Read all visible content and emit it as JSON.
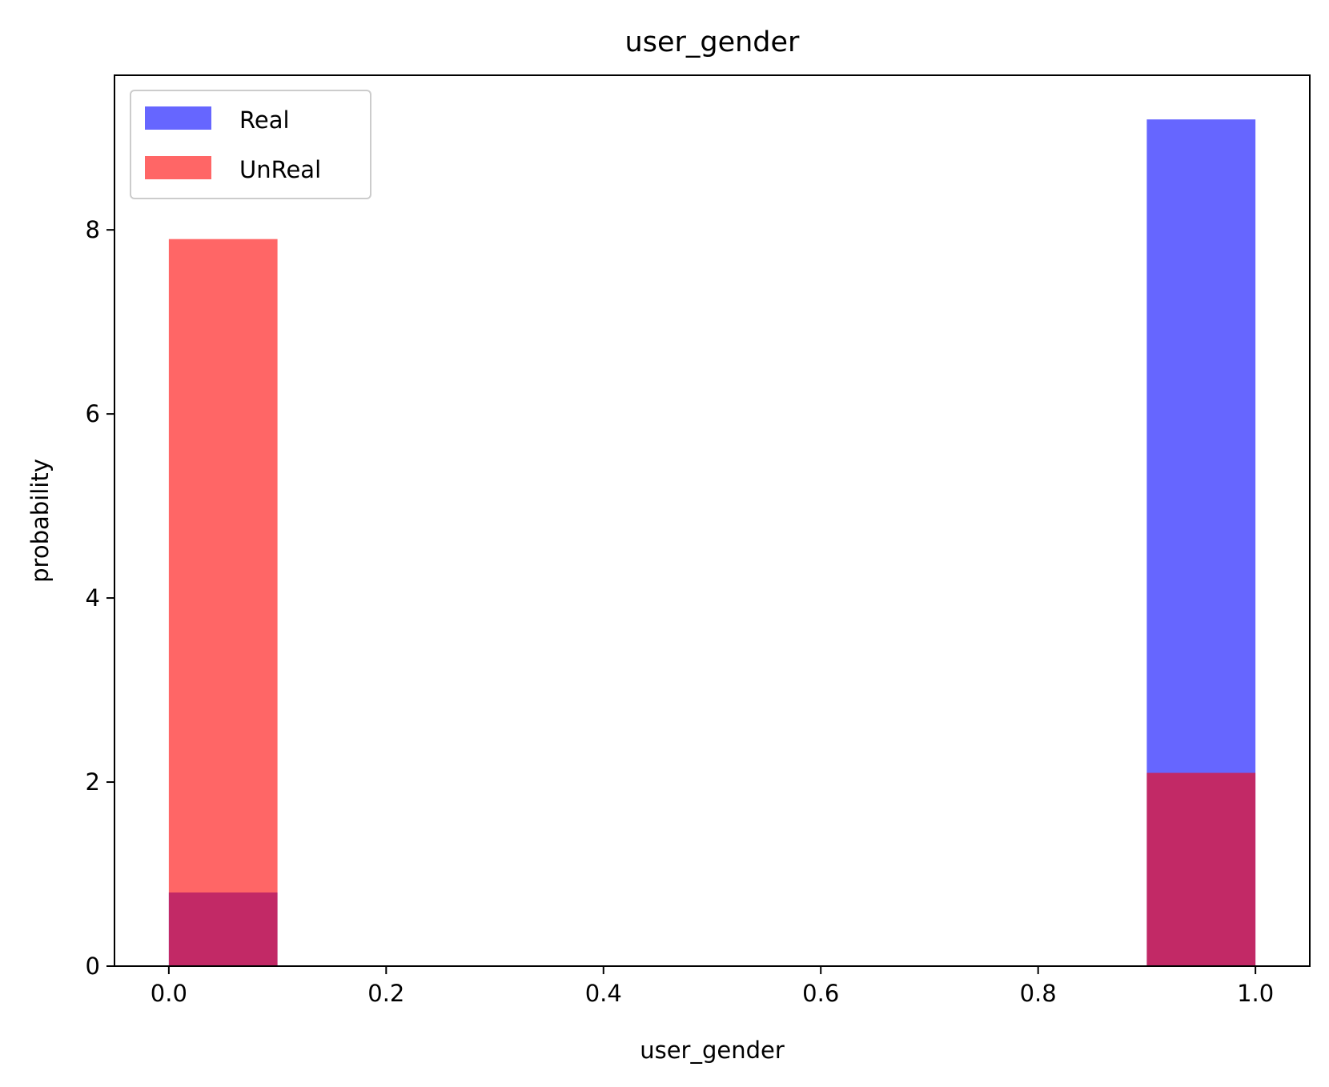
{
  "chart_data": {
    "type": "bar",
    "title": "user_gender",
    "xlabel": "user_gender",
    "ylabel": "probability",
    "xlim": [
      -0.05,
      1.05
    ],
    "ylim": [
      0,
      9.68
    ],
    "xticks": [
      0.0,
      0.2,
      0.4,
      0.6,
      0.8,
      1.0
    ],
    "xtick_labels": [
      "0.0",
      "0.2",
      "0.4",
      "0.6",
      "0.8",
      "1.0"
    ],
    "yticks": [
      0,
      2,
      4,
      6,
      8
    ],
    "ytick_labels": [
      "0",
      "2",
      "4",
      "6",
      "8"
    ],
    "legend_position": "top-left",
    "grid": false,
    "series": [
      {
        "name": "Real",
        "color": "#0000ff",
        "opacity": 0.6,
        "bins": [
          {
            "x0": 0.0,
            "x1": 0.1,
            "value": 0.8
          },
          {
            "x0": 0.9,
            "x1": 1.0,
            "value": 9.2
          }
        ]
      },
      {
        "name": "UnReal",
        "color": "#ff0000",
        "opacity": 0.6,
        "bins": [
          {
            "x0": 0.0,
            "x1": 0.1,
            "value": 7.9
          },
          {
            "x0": 0.9,
            "x1": 1.0,
            "value": 2.1
          }
        ]
      }
    ]
  }
}
